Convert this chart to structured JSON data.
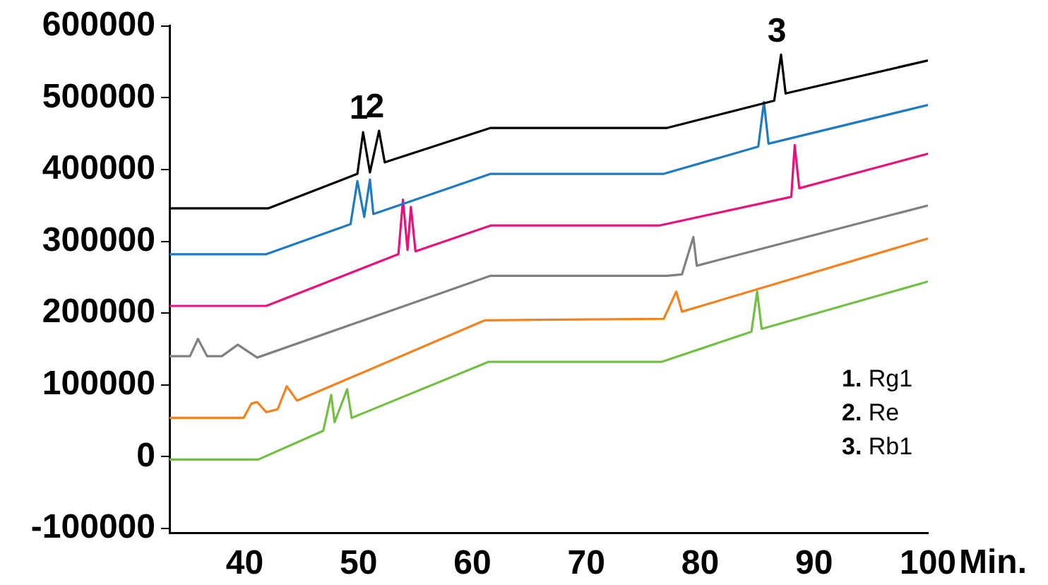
{
  "chart_data": {
    "type": "line",
    "xlabel": "Min.",
    "xlim": [
      33.4,
      100
    ],
    "xticks": [
      40,
      50,
      60,
      70,
      80,
      90,
      100
    ],
    "ylim": [
      -106000,
      600000
    ],
    "yticks": [
      -100000,
      0,
      100000,
      200000,
      300000,
      400000,
      500000,
      600000
    ],
    "grid": false,
    "legend": false,
    "marker": "none",
    "line_style": "solid",
    "series": [
      {
        "color": "#000000",
        "x": [
          33.4,
          42.1,
          49.9,
          50.4,
          51.0,
          51.8,
          52.3,
          61.6,
          77.1,
          86.5,
          87.1,
          87.5,
          100
        ],
        "values": [
          346000,
          346000,
          394000,
          452000,
          396000,
          454000,
          410000,
          458000,
          458000,
          496000,
          560000,
          506000,
          552000
        ]
      },
      {
        "color": "#1f7bc1",
        "x": [
          33.4,
          41.9,
          49.3,
          49.9,
          50.5,
          51.0,
          51.3,
          61.6,
          76.8,
          85.1,
          85.6,
          86.0,
          100
        ],
        "values": [
          282000,
          282000,
          324000,
          384000,
          334000,
          386000,
          338000,
          394000,
          394000,
          432000,
          494000,
          436000,
          490000
        ]
      },
      {
        "color": "#e8127c",
        "x": [
          33.4,
          41.9,
          53.5,
          53.9,
          54.3,
          54.6,
          55.0,
          61.6,
          76.4,
          88.0,
          88.3,
          88.7,
          100
        ],
        "values": [
          210000,
          210000,
          282000,
          358000,
          288000,
          348000,
          286000,
          322000,
          322000,
          362000,
          434000,
          374000,
          422000
        ]
      },
      {
        "color": "#808080",
        "x": [
          33.4,
          35.2,
          35.9,
          36.7,
          38.0,
          39.4,
          41.1,
          61.6,
          77.1,
          78.4,
          79.4,
          79.7,
          100
        ],
        "values": [
          140000,
          140000,
          164000,
          140000,
          140000,
          156000,
          138000,
          252000,
          252000,
          254000,
          306000,
          266000,
          350000
        ]
      },
      {
        "color": "#f5821f",
        "x": [
          33.4,
          39.9,
          40.6,
          41.1,
          41.9,
          42.9,
          43.7,
          44.6,
          61.1,
          76.8,
          77.9,
          78.4,
          100
        ],
        "values": [
          54000,
          54000,
          74000,
          76000,
          62000,
          66000,
          98000,
          78000,
          190000,
          192000,
          230000,
          202000,
          304000
        ]
      },
      {
        "color": "#72bf44",
        "x": [
          33.4,
          41.2,
          46.9,
          47.6,
          47.9,
          49.0,
          49.4,
          61.4,
          76.6,
          84.5,
          85.0,
          85.4,
          100
        ],
        "values": [
          -4000,
          -4000,
          36000,
          86000,
          48000,
          94000,
          54000,
          132000,
          132000,
          174000,
          230000,
          178000,
          244000
        ]
      }
    ],
    "annotations": [
      {
        "text": "1",
        "x": 50.4,
        "y": 452000
      },
      {
        "text": "2",
        "x": 51.8,
        "y": 454000
      },
      {
        "text": "3",
        "x": 87.1,
        "y": 560000
      },
      "1. Rg1",
      "2. Re",
      "3. Rb1"
    ]
  }
}
